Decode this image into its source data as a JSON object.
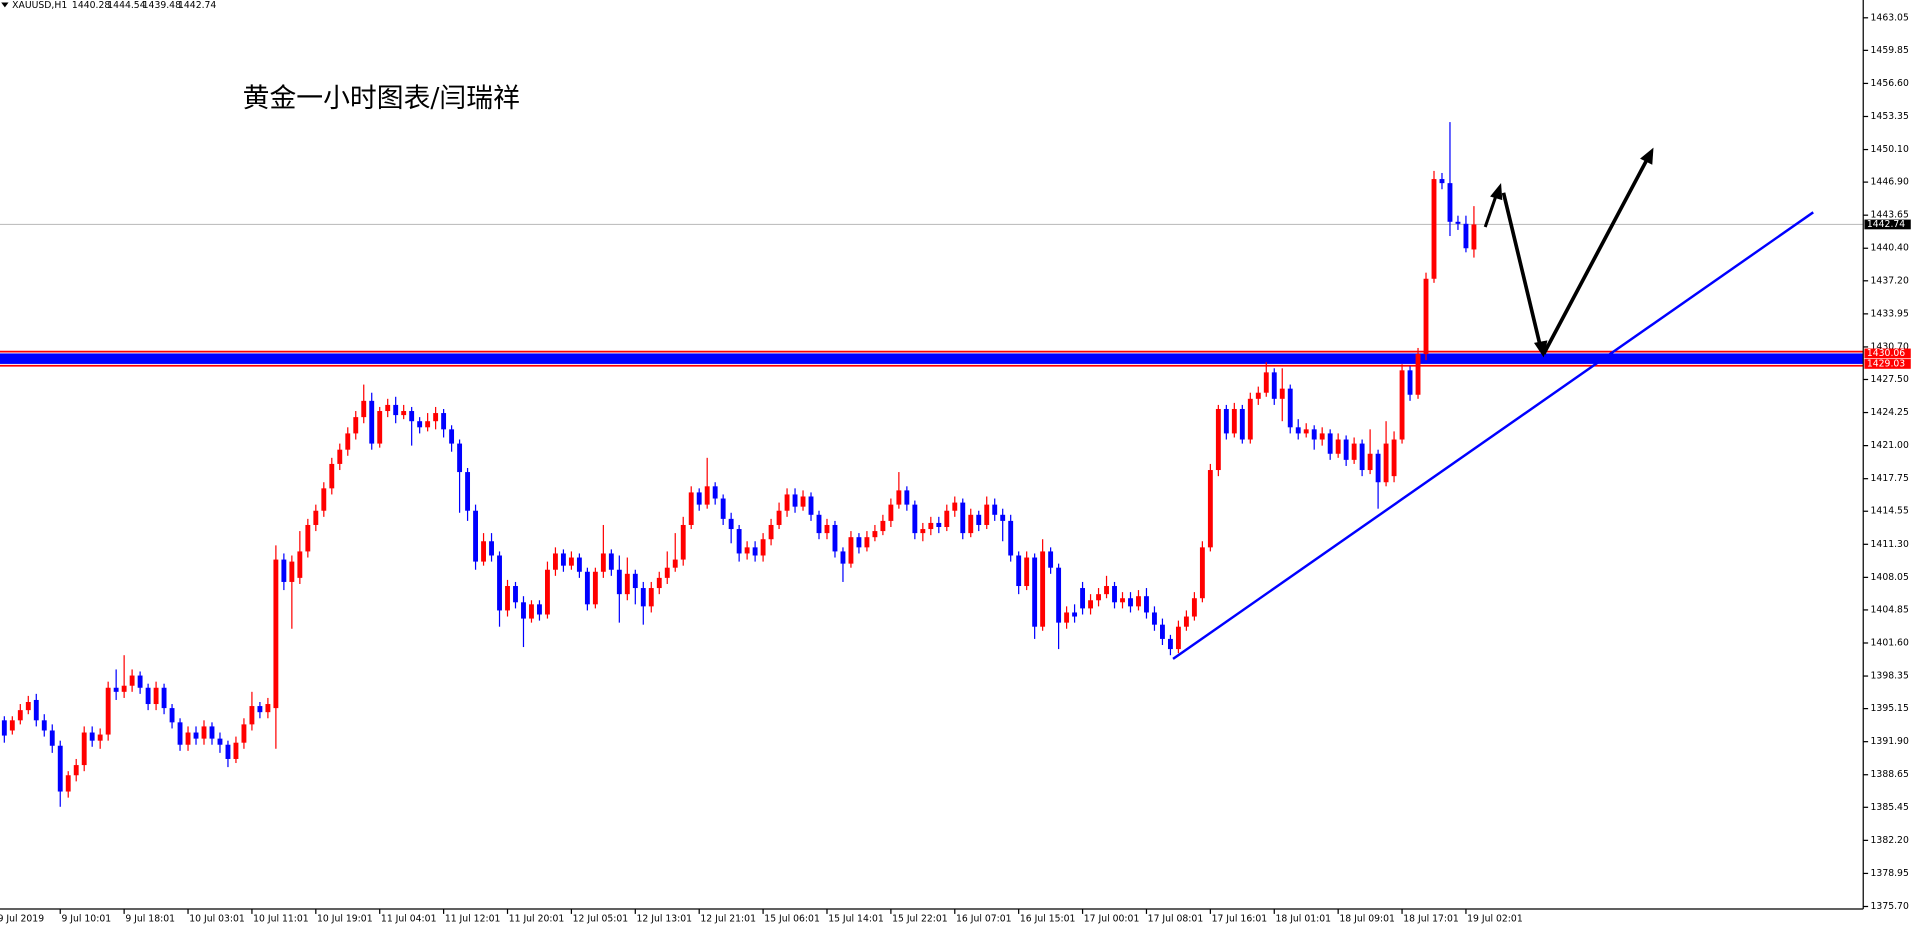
{
  "chart_data": {
    "type": "candlestick",
    "symbol": "XAUUSD,H1",
    "title": "黄金一小时图表/闫瑞祥",
    "up_color": "#ff0000",
    "down_color": "#0000ff",
    "ylim": [
      1375.45,
      1464.8
    ],
    "yticks": [
      1463.05,
      1459.85,
      {
        "value": 1456.6,
        "label": "1456.60"
      },
      1453.35,
      {
        "value": 1450.1,
        "label": "1450.10"
      },
      {
        "value": 1446.9,
        "label": "1446.90"
      },
      1443.65,
      {
        "value": 1440.4,
        "label": "1440.40"
      },
      {
        "value": 1437.2,
        "label": "1437.20"
      },
      1433.95,
      {
        "value": 1430.7,
        "label": "1430.70"
      },
      {
        "value": 1427.5,
        "label": "1427.50"
      },
      1424.25,
      {
        "value": 1421,
        "label": "1421.00"
      },
      1417.75,
      1414.55,
      {
        "value": 1411.3,
        "label": "1411.30"
      },
      1408.05,
      1404.85,
      {
        "value": 1401.6,
        "label": "1401.60"
      },
      1398.35,
      1395.15,
      {
        "value": 1391.9,
        "label": "1391.90"
      },
      1388.65,
      1385.45,
      {
        "value": 1382.2,
        "label": "1382.20"
      },
      1378.95,
      {
        "value": 1375.7,
        "label": "1375.70"
      }
    ],
    "levels": [
      1430.06,
      1429.03
    ],
    "level_color": "#0000ff",
    "level_edge_color": "#ff0000",
    "current_price_line": true,
    "categories": [
      "9 Jul 2019",
      null,
      null,
      null,
      null,
      null,
      null,
      null,
      "9 Jul 10:01",
      null,
      null,
      null,
      null,
      null,
      null,
      null,
      "9 Jul 18:01",
      null,
      null,
      null,
      null,
      null,
      null,
      null,
      "10 Jul 03:01",
      null,
      null,
      null,
      null,
      null,
      null,
      null,
      "10 Jul 11:01",
      null,
      null,
      null,
      null,
      null,
      null,
      null,
      "10 Jul 19:01",
      null,
      null,
      null,
      null,
      null,
      null,
      null,
      "11 Jul 04:01",
      null,
      null,
      null,
      null,
      null,
      null,
      null,
      "11 Jul 12:01",
      null,
      null,
      null,
      null,
      null,
      null,
      null,
      "11 Jul 20:01",
      null,
      null,
      null,
      null,
      null,
      null,
      null,
      "12 Jul 05:01",
      null,
      null,
      null,
      null,
      null,
      null,
      null,
      "12 Jul 13:01",
      null,
      null,
      null,
      null,
      null,
      null,
      null,
      "12 Jul 21:01",
      null,
      null,
      null,
      null,
      null,
      null,
      null,
      "15 Jul 06:01",
      null,
      null,
      null,
      null,
      null,
      null,
      null,
      "15 Jul 14:01",
      null,
      null,
      null,
      null,
      null,
      null,
      null,
      "15 Jul 22:01",
      null,
      null,
      null,
      null,
      null,
      null,
      null,
      "16 Jul 07:01",
      null,
      null,
      null,
      null,
      null,
      null,
      null,
      "16 Jul 15:01",
      null,
      null,
      null,
      null,
      null,
      null,
      null,
      "17 Jul 00:01",
      null,
      null,
      null,
      null,
      null,
      null,
      null,
      "17 Jul 08:01",
      null,
      null,
      null,
      null,
      null,
      null,
      null,
      "17 Jul 16:01",
      null,
      null,
      null,
      null,
      null,
      null,
      null,
      "18 Jul 01:01",
      null,
      null,
      null,
      null,
      null,
      null,
      null,
      "18 Jul 09:01",
      null,
      null,
      null,
      null,
      null,
      null,
      null,
      "18 Jul 17:01",
      null,
      null,
      null,
      null,
      null,
      null,
      null,
      "19 Jul 02:01",
      null
    ],
    "open": [
      1393.5,
      1394,
      1393,
      1394,
      1395,
      1396,
      1394,
      1393,
      1391.5,
      1387,
      1388.6,
      1389.6,
      1392.8,
      1392,
      1392.6,
      1397.2,
      1396.8,
      1397.4,
      1398.4,
      1397.2,
      1395.6,
      1397.2,
      1395.2,
      1393.8,
      1391.6,
      1392.8,
      1392.2,
      1393.4,
      1392.2,
      1391.6,
      1390.2,
      1391.8,
      1393.6,
      1395.4,
      1394.8,
      1395.2,
      1409.8,
      1407.6,
      1408,
      1410.6,
      1413.2,
      1414.6,
      1416.8,
      1419.2,
      1420.6,
      1422.2,
      1423.8,
      1425.4,
      1421.2,
      1424.4,
      1425,
      1424,
      1424.4,
      1423.4,
      1422.8,
      1423.4,
      1424.2,
      1422.6,
      1421.2,
      1418.4,
      1414.6,
      1409.6,
      1411.6,
      1410.2,
      1404.8,
      1407.2,
      1405.6,
      1404,
      1405.4,
      1404.4,
      1408.8,
      1410.4,
      1409.2,
      1410,
      1408.6,
      1405.4,
      1408.6,
      1410.4,
      1408.8,
      1406.4,
      1408.4,
      1407,
      1405.2,
      1407,
      1408,
      1409,
      1409.8,
      1413.2,
      1416.4,
      1415.2,
      1417,
      1415.8,
      1413.8,
      1412.8,
      1410.4,
      1411,
      1410.2,
      1411.8,
      1413.2,
      1414.6,
      1416.2,
      1415,
      1416,
      1414.2,
      1412.4,
      1413.2,
      1410.6,
      1409.4,
      1412,
      1411,
      1412,
      1412.6,
      1413.6,
      1415.2,
      1416.6,
      1415.2,
      1412.4,
      1412.8,
      1413.4,
      1413,
      1414.6,
      1415.4,
      1412.4,
      1414.2,
      1413.2,
      1415.2,
      1414.2,
      1413.6,
      1410.2,
      1407.2,
      1410,
      1403.2,
      1410.6,
      1409,
      1403.6,
      1404.6,
      1407,
      1405,
      1405.8,
      1406.4,
      1407.2,
      1405.6,
      1406,
      1405.2,
      1406.2,
      1404.6,
      1403.4,
      1402,
      1401,
      1403.2,
      1404.2,
      1406,
      1411,
      1418.6,
      1424.6,
      1422.2,
      1424.6,
      1421.6,
      1425.6,
      1426.2,
      1428.2,
      1425.6,
      1426.6,
      1422.8,
      1422.2,
      1422.6,
      1421.6,
      1422.2,
      1420.2,
      1421.6,
      1419.6,
      1421.2,
      1418.6,
      1420.2,
      1417.4,
      1418,
      1421.6,
      1428.4,
      1426,
      1430,
      1437.4,
      1447.2,
      1446.8,
      1443,
      1442.8,
      1440.28
    ],
    "high": [
      1394.6,
      1394.4,
      1394.4,
      1395.6,
      1396.4,
      1396.6,
      1394.6,
      1393.6,
      1392,
      1389,
      1390.2,
      1393.4,
      1393.4,
      1393.2,
      1397.8,
      1399,
      1400.4,
      1399,
      1398.8,
      1397.6,
      1397.8,
      1397.6,
      1395.6,
      1394.2,
      1393.4,
      1393.4,
      1394,
      1393.8,
      1392.8,
      1392,
      1392.4,
      1394.2,
      1396.8,
      1395.8,
      1396.2,
      1411.2,
      1410.4,
      1410.2,
      1412.6,
      1413.8,
      1415.2,
      1417.4,
      1419.8,
      1421.2,
      1422.8,
      1424.4,
      1427,
      1426.2,
      1424.8,
      1425.6,
      1425.8,
      1425,
      1424.8,
      1423.8,
      1424.2,
      1424.8,
      1424.6,
      1423,
      1421.6,
      1418.8,
      1415.2,
      1412.4,
      1412.4,
      1410.6,
      1407.8,
      1407.6,
      1406.2,
      1405.8,
      1405.8,
      1409.6,
      1411,
      1410.8,
      1410.6,
      1410.4,
      1409,
      1409,
      1413.2,
      1410.8,
      1410.2,
      1410,
      1408.8,
      1407.6,
      1407.6,
      1408.6,
      1410.6,
      1412.4,
      1414,
      1417,
      1416.8,
      1419.8,
      1417.4,
      1416.2,
      1414.4,
      1413.2,
      1411.6,
      1411.6,
      1412.4,
      1413.8,
      1415.4,
      1416.8,
      1416.8,
      1416.6,
      1416.4,
      1414.6,
      1413.8,
      1413.6,
      1411,
      1412.6,
      1412.4,
      1412.6,
      1413.2,
      1414.2,
      1415.8,
      1418.4,
      1417,
      1415.6,
      1413.4,
      1414,
      1414,
      1415.2,
      1416,
      1415.8,
      1414.8,
      1414.6,
      1416,
      1415.8,
      1414.8,
      1414.2,
      1410.6,
      1410.6,
      1410.4,
      1411.8,
      1411,
      1409.4,
      1405.2,
      1405.4,
      1407.6,
      1406.4,
      1407,
      1408.2,
      1407.6,
      1406.6,
      1406.6,
      1406.8,
      1407,
      1405.2,
      1404,
      1402.4,
      1403.8,
      1404.8,
      1406.6,
      1411.6,
      1419.2,
      1425,
      1425,
      1425.2,
      1425,
      1426.2,
      1426.8,
      1429.2,
      1428.6,
      1428.6,
      1427,
      1423.6,
      1423.2,
      1423,
      1422.8,
      1422.6,
      1422.2,
      1422,
      1421.8,
      1421.6,
      1422.6,
      1420.6,
      1423.4,
      1422.4,
      1429,
      1428.8,
      1430.6,
      1438,
      1448,
      1447.8,
      1452.8,
      1443.6,
      1443.6,
      1444.54
    ],
    "low": [
      1392.8,
      1391.8,
      1392.6,
      1393.6,
      1394.6,
      1393.4,
      1392.4,
      1390.8,
      1385.5,
      1386.4,
      1388,
      1389,
      1391.4,
      1391.2,
      1392,
      1396,
      1396.2,
      1396.8,
      1396.6,
      1395,
      1395,
      1394.6,
      1393.2,
      1391,
      1391,
      1391.6,
      1391.6,
      1391.6,
      1390.8,
      1389.4,
      1389.8,
      1391.2,
      1393,
      1394.2,
      1394.2,
      1391.2,
      1406.8,
      1403,
      1407.4,
      1410,
      1412.6,
      1414,
      1416.2,
      1418.6,
      1420,
      1421.6,
      1423.2,
      1420.6,
      1420.8,
      1423.8,
      1423.2,
      1423.6,
      1421,
      1422.2,
      1422.4,
      1422.6,
      1421.8,
      1420.4,
      1414.4,
      1413.6,
      1408.8,
      1409.2,
      1409.6,
      1403.2,
      1404.2,
      1405,
      1401.2,
      1403.6,
      1403.8,
      1404,
      1408.2,
      1408.6,
      1408.8,
      1408,
      1404.8,
      1405,
      1408,
      1408.2,
      1403.6,
      1405.8,
      1405.4,
      1403.4,
      1404.6,
      1406.4,
      1407.4,
      1408.6,
      1409.2,
      1412.8,
      1414.6,
      1414.8,
      1415.2,
      1413.2,
      1411.4,
      1409.6,
      1409.8,
      1409.6,
      1409.6,
      1411.2,
      1412.8,
      1414,
      1414.4,
      1414.6,
      1413.6,
      1411.8,
      1411.8,
      1410,
      1407.6,
      1409,
      1410.4,
      1410.6,
      1411.6,
      1412.2,
      1413,
      1414.8,
      1414.6,
      1411.8,
      1411.6,
      1412.2,
      1412.4,
      1412.6,
      1414,
      1411.8,
      1412,
      1412.6,
      1412.8,
      1413.6,
      1411.6,
      1409.6,
      1406.4,
      1406.8,
      1402,
      1402.8,
      1408.4,
      1401,
      1403,
      1403.6,
      1404.4,
      1404.4,
      1405.2,
      1406,
      1405,
      1405,
      1404.6,
      1404.8,
      1404,
      1402.8,
      1401.4,
      1400.4,
      1400.6,
      1402.8,
      1403.8,
      1405.6,
      1410.6,
      1418,
      1421.6,
      1421.8,
      1421.2,
      1421.2,
      1425,
      1425.8,
      1425,
      1423.4,
      1422.2,
      1421.6,
      1421.8,
      1420.6,
      1421,
      1419.6,
      1419.8,
      1419,
      1419.2,
      1418,
      1418.2,
      1414.8,
      1417,
      1417.4,
      1421.2,
      1425.4,
      1425.6,
      1429.4,
      1437,
      1446.2,
      1441.6,
      1442.2,
      1440,
      1439.48
    ],
    "close": [
      1393.9,
      1392.5,
      1394,
      1395,
      1395.8,
      1394,
      1393,
      1391.5,
      1387,
      1388.6,
      1389.6,
      1392.8,
      1392,
      1392.6,
      1397.2,
      1396.8,
      1397.4,
      1398.4,
      1397.2,
      1395.6,
      1397.2,
      1395.2,
      1393.8,
      1391.6,
      1392.8,
      1392.2,
      1393.4,
      1392.2,
      1391.6,
      1390.2,
      1391.8,
      1393.6,
      1395.4,
      1394.8,
      1395.6,
      1409.8,
      1407.6,
      1409.6,
      1410.6,
      1413.2,
      1414.6,
      1416.8,
      1419.2,
      1420.6,
      1422.2,
      1423.8,
      1425.4,
      1421.2,
      1424.4,
      1425,
      1424,
      1424.4,
      1423.4,
      1422.8,
      1423.4,
      1424.2,
      1422.6,
      1421.2,
      1418.4,
      1414.6,
      1409.6,
      1411.6,
      1410.2,
      1404.8,
      1407.2,
      1405.6,
      1404,
      1405.4,
      1404.4,
      1408.8,
      1410.4,
      1409.2,
      1410,
      1408.6,
      1405.4,
      1408.6,
      1410.4,
      1408.8,
      1406.4,
      1408.4,
      1407,
      1405.2,
      1407,
      1408,
      1409,
      1409.8,
      1413.2,
      1416.4,
      1415.2,
      1417,
      1415.8,
      1413.8,
      1412.8,
      1410.4,
      1411,
      1410.2,
      1411.8,
      1413.2,
      1414.6,
      1416.2,
      1415,
      1416,
      1414.2,
      1412.4,
      1413.2,
      1410.6,
      1409.4,
      1412,
      1411,
      1412,
      1412.6,
      1413.6,
      1415.2,
      1416.6,
      1415.2,
      1412.4,
      1412.8,
      1413.4,
      1413,
      1414.6,
      1415.4,
      1412.4,
      1414.2,
      1413.2,
      1415.2,
      1414.2,
      1413.6,
      1410.2,
      1407.2,
      1410,
      1403.2,
      1410.6,
      1409,
      1403.6,
      1404.6,
      1404.2,
      1405,
      1405.8,
      1406.4,
      1407.2,
      1405.6,
      1406,
      1405.2,
      1406.2,
      1404.6,
      1403.4,
      1402,
      1401,
      1403.2,
      1404.2,
      1406,
      1411,
      1418.6,
      1424.6,
      1422.2,
      1424.6,
      1421.6,
      1425.6,
      1426.2,
      1428.2,
      1425.6,
      1426.6,
      1422.8,
      1422.2,
      1422.6,
      1421.6,
      1422.2,
      1420.2,
      1421.6,
      1419.6,
      1421.2,
      1418.6,
      1420.2,
      1417.4,
      1421.2,
      1421.6,
      1428.4,
      1426,
      1430,
      1437.4,
      1447.2,
      1446.8,
      1443,
      1442.8,
      1440.4,
      1442.74
    ]
  }
}
